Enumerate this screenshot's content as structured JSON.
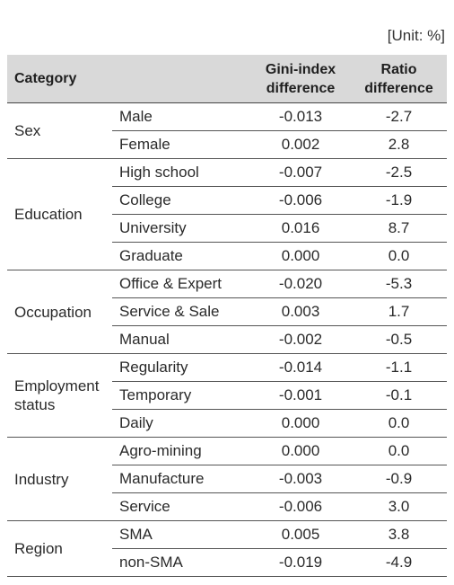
{
  "unit_label": "[Unit: %]",
  "header": {
    "category": "Category",
    "gini_line1": "Gini-index",
    "gini_line2": "difference",
    "ratio_line1": "Ratio",
    "ratio_line2": "difference"
  },
  "groups": [
    {
      "name": "Sex",
      "rows": [
        {
          "sub": "Male",
          "gini": "-0.013",
          "ratio": "-2.7"
        },
        {
          "sub": "Female",
          "gini": "0.002",
          "ratio": "2.8"
        }
      ]
    },
    {
      "name": "Education",
      "rows": [
        {
          "sub": "High school",
          "gini": "-0.007",
          "ratio": "-2.5"
        },
        {
          "sub": "College",
          "gini": "-0.006",
          "ratio": "-1.9"
        },
        {
          "sub": "University",
          "gini": "0.016",
          "ratio": "8.7"
        },
        {
          "sub": "Graduate",
          "gini": "0.000",
          "ratio": "0.0"
        }
      ]
    },
    {
      "name": "Occupation",
      "rows": [
        {
          "sub": "Office & Expert",
          "gini": "-0.020",
          "ratio": "-5.3"
        },
        {
          "sub": "Service & Sale",
          "gini": "0.003",
          "ratio": "1.7"
        },
        {
          "sub": "Manual",
          "gini": "-0.002",
          "ratio": "-0.5"
        }
      ]
    },
    {
      "name_line1": "Employment",
      "name_line2": "status",
      "rows": [
        {
          "sub": "Regularity",
          "gini": "-0.014",
          "ratio": "-1.1"
        },
        {
          "sub": "Temporary",
          "gini": "-0.001",
          "ratio": "-0.1"
        },
        {
          "sub": "Daily",
          "gini": "0.000",
          "ratio": "0.0"
        }
      ]
    },
    {
      "name": "Industry",
      "rows": [
        {
          "sub": "Agro-mining",
          "gini": "0.000",
          "ratio": "0.0"
        },
        {
          "sub": "Manufacture",
          "gini": "-0.003",
          "ratio": "-0.9"
        },
        {
          "sub": "Service",
          "gini": "-0.006",
          "ratio": "3.0"
        }
      ]
    },
    {
      "name": "Region",
      "rows": [
        {
          "sub": "SMA",
          "gini": "0.005",
          "ratio": "3.8"
        },
        {
          "sub": "non-SMA",
          "gini": "-0.019",
          "ratio": "-4.9"
        }
      ]
    }
  ]
}
